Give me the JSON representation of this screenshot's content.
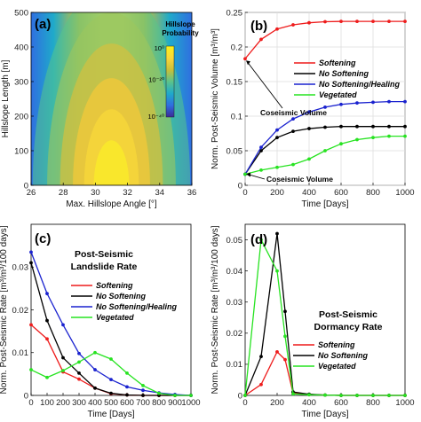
{
  "chart_data": [
    {
      "panel": "(a)",
      "type": "heatmap",
      "xlabel": "Max. Hillslope Angle [°]",
      "ylabel": "Hillslope Length [m]",
      "xlim": [
        26,
        36
      ],
      "ylim": [
        0,
        500
      ],
      "xticks": [
        "26",
        "28",
        "30",
        "32",
        "34",
        "36"
      ],
      "yticks": [
        "0",
        "100",
        "200",
        "300",
        "400",
        "500"
      ],
      "colorbar": {
        "title": [
          "Hillslope",
          "Probability"
        ],
        "ticks": [
          "10⁰",
          "10⁻²⁰",
          "10⁻⁴⁰"
        ],
        "scale": "log",
        "colormap": [
          "#3b2a98",
          "#2f6fe0",
          "#1faaca",
          "#5cc38a",
          "#c8c03a",
          "#f9d73a",
          "#f9f21a"
        ]
      },
      "peak": {
        "angle": 31,
        "length": 0
      },
      "grid": false
    },
    {
      "panel": "(b)",
      "type": "line",
      "xlabel": "Time [Days]",
      "ylabel": "Norm. Post-Seismic Volume [m³/m³]",
      "xlim": [
        0,
        1000
      ],
      "ylim": [
        0,
        0.25
      ],
      "xticks": [
        "0",
        "200",
        "400",
        "600",
        "800",
        "1000"
      ],
      "yticks": [
        "0",
        "0.05",
        "0.1",
        "0.15",
        "0.2",
        "0.25"
      ],
      "grid": true,
      "legend": "upper-right",
      "x": [
        0,
        100,
        200,
        300,
        400,
        500,
        600,
        700,
        800,
        900,
        1000
      ],
      "series": [
        {
          "name": "Softening",
          "color": "#ee1c1c",
          "values": [
            0.183,
            0.211,
            0.226,
            0.232,
            0.235,
            0.2365,
            0.237,
            0.237,
            0.237,
            0.237,
            0.237
          ]
        },
        {
          "name": "No Softening",
          "color": "#000000",
          "values": [
            0.016,
            0.05,
            0.069,
            0.078,
            0.082,
            0.084,
            0.085,
            0.085,
            0.085,
            0.085,
            0.085
          ]
        },
        {
          "name": "No Softening/Healing",
          "color": "#1a22cf",
          "values": [
            0.016,
            0.055,
            0.08,
            0.096,
            0.106,
            0.113,
            0.117,
            0.119,
            0.12,
            0.121,
            0.121
          ]
        },
        {
          "name": "Vegetated",
          "color": "#27e321",
          "values": [
            0.016,
            0.022,
            0.026,
            0.03,
            0.038,
            0.05,
            0.06,
            0.066,
            0.069,
            0.071,
            0.071
          ]
        }
      ],
      "annotations": [
        "Coseismic Volume",
        "Coseismic Volume"
      ]
    },
    {
      "panel": "(c)",
      "type": "line",
      "title": [
        "Post-Seismic",
        "Landslide Rate"
      ],
      "xlabel": "Time [Days]",
      "ylabel": "Norm. Post-Seismic Rate [m³/m³/100 days]",
      "xlim": [
        0,
        1000
      ],
      "ylim": [
        0,
        0.04
      ],
      "xticks": [
        "0",
        "100",
        "200",
        "300",
        "400",
        "500",
        "600",
        "700",
        "800",
        "900",
        "1000"
      ],
      "yticks": [
        "0",
        "0.01",
        "0.02",
        "0.03"
      ],
      "grid": false,
      "legend": "right",
      "x": [
        0,
        100,
        200,
        300,
        400,
        500,
        600,
        700,
        800,
        900,
        1000
      ],
      "series": [
        {
          "name": "Softening",
          "color": "#ee1c1c",
          "values": [
            0.0165,
            0.0132,
            0.0055,
            0.0038,
            0.0017,
            0.0004,
            0.0001,
            0,
            0,
            0,
            0
          ]
        },
        {
          "name": "No Softening",
          "color": "#000000",
          "values": [
            0.031,
            0.0175,
            0.0088,
            0.0052,
            0.0017,
            0.0005,
            0.0001,
            0,
            0,
            0,
            0
          ]
        },
        {
          "name": "No Softening/Healing",
          "color": "#1a22cf",
          "values": [
            0.0335,
            0.0238,
            0.0165,
            0.0098,
            0.006,
            0.0037,
            0.002,
            0.0012,
            0.0006,
            0.0002,
            0
          ]
        },
        {
          "name": "Vegetated",
          "color": "#27e321",
          "values": [
            0.006,
            0.0042,
            0.0058,
            0.0078,
            0.01,
            0.0085,
            0.0052,
            0.0023,
            0.0005,
            0,
            0
          ]
        }
      ]
    },
    {
      "panel": "(d)",
      "type": "line",
      "title": [
        "Post-Seismic",
        "Dormancy Rate"
      ],
      "xlabel": "Time [Days]",
      "ylabel": "Norm. Post-Seismic Rate [m³/m³/100 days]",
      "xlim": [
        0,
        1000
      ],
      "ylim": [
        0,
        0.055
      ],
      "xticks": [
        "0",
        "200",
        "400",
        "600",
        "800",
        "1000"
      ],
      "yticks": [
        "0",
        "0.01",
        "0.02",
        "0.03",
        "0.04",
        "0.05"
      ],
      "grid": false,
      "legend": "lower-right",
      "x": [
        0,
        100,
        200,
        250,
        300,
        400,
        500,
        600,
        700,
        800,
        900,
        1000
      ],
      "series": [
        {
          "name": "Softening",
          "color": "#ee1c1c",
          "values": [
            0,
            0.0035,
            0.014,
            0.0115,
            0.0007,
            0.0003,
            0.0001,
            0,
            0,
            0,
            0,
            0
          ]
        },
        {
          "name": "No Softening",
          "color": "#000000",
          "values": [
            0,
            0.0125,
            0.052,
            0.027,
            0.0011,
            0.0004,
            0.0001,
            0,
            0,
            0,
            0,
            0
          ]
        },
        {
          "name": "Vegetated",
          "color": "#27e321",
          "values": [
            0,
            0.05,
            0.04,
            0.019,
            0.0005,
            0.0002,
            0.0001,
            0,
            0,
            0,
            0,
            0
          ]
        }
      ]
    }
  ]
}
